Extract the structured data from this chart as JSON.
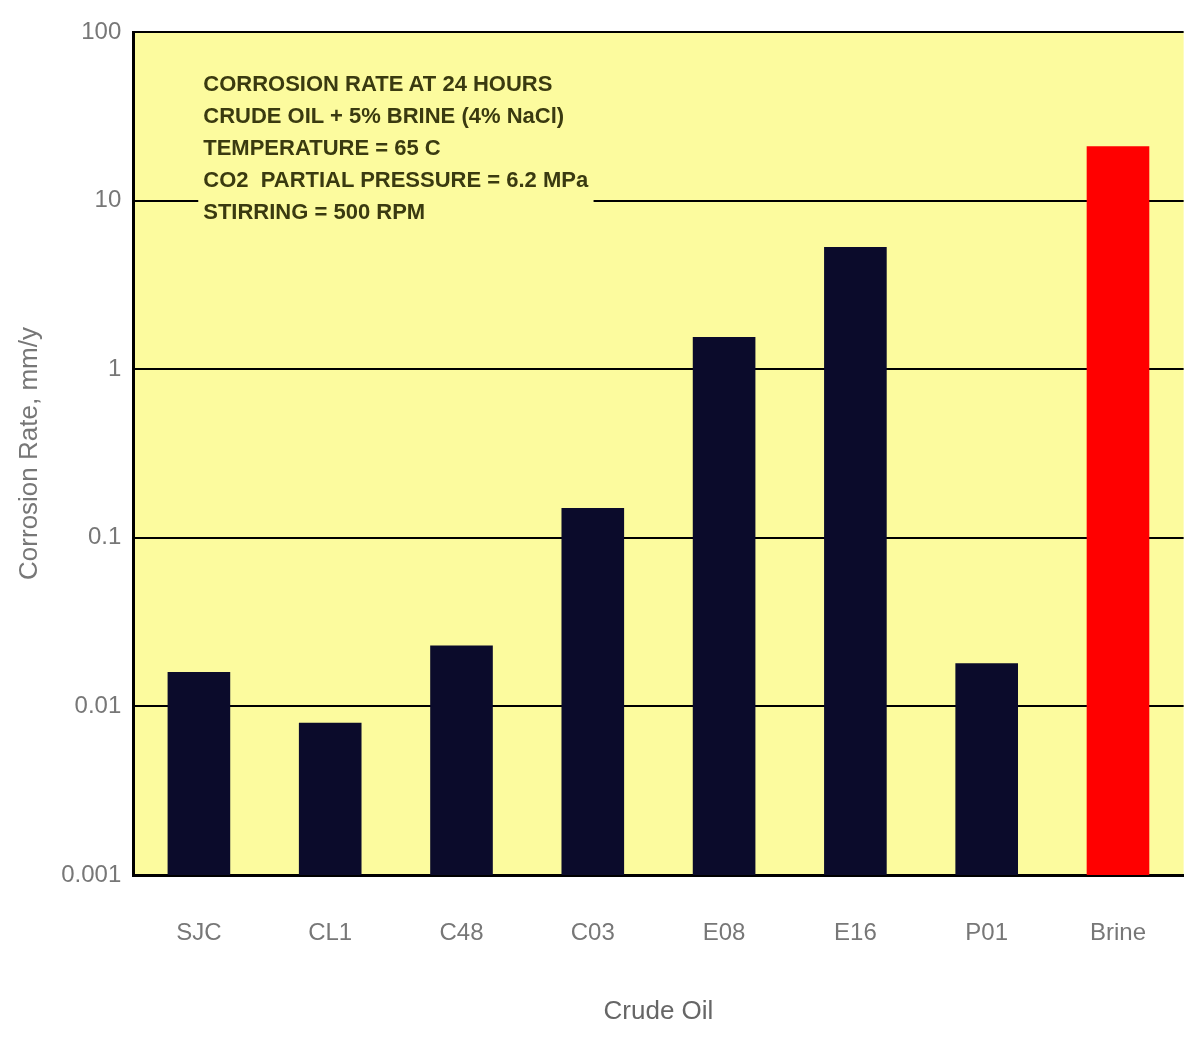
{
  "chart_data": {
    "type": "bar",
    "xlabel": "Crude Oil",
    "ylabel": "Corrosion Rate, mm/y",
    "categories": [
      "SJC",
      "CL1",
      "C48",
      "C03",
      "E08",
      "E16",
      "P01",
      "Brine"
    ],
    "values": [
      0.016,
      0.008,
      0.023,
      0.15,
      1.55,
      5.3,
      0.018,
      21
    ],
    "colors": [
      "#0b0b2b",
      "#0b0b2b",
      "#0b0b2b",
      "#0b0b2b",
      "#0b0b2b",
      "#0b0b2b",
      "#0b0b2b",
      "#ff0000"
    ],
    "log": true,
    "ylim": [
      0.001,
      100
    ],
    "yticks": [
      0.001,
      0.01,
      0.1,
      1,
      10,
      100
    ],
    "grid": "y",
    "legend": false,
    "annotations": [
      "CORROSION RATE AT 24 HOURS\nCRUDE OIL + 5% BRINE (4% NaCl)\nTEMPERATURE = 65 C\nCO2  PARTIAL PRESSURE = 6.2 MPa\nSTIRRING = 500 RPM"
    ]
  }
}
